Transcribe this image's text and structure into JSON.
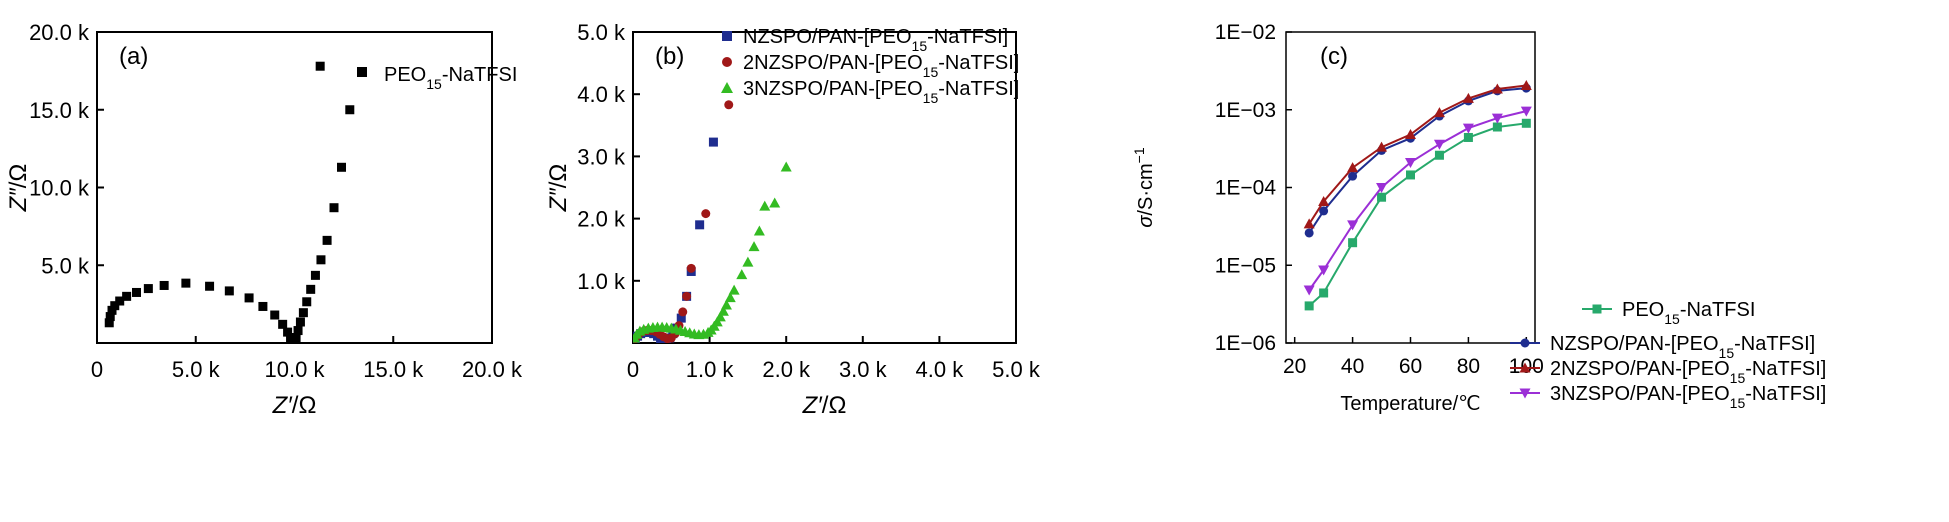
{
  "chart_data": [
    {
      "panel": "(a)",
      "type": "scatter",
      "xlabel_main": "Z′",
      "xlabel_unit": "/Ω",
      "ylabel_main": "Z″",
      "ylabel_unit": "/Ω",
      "xlim": [
        0,
        20000
      ],
      "ylim": [
        0,
        20000
      ],
      "xticks": [
        {
          "v": 0,
          "label": "0"
        },
        {
          "v": 5000,
          "label": "5.0 k"
        },
        {
          "v": 10000,
          "label": "10.0 k"
        },
        {
          "v": 15000,
          "label": "15.0 k"
        },
        {
          "v": 20000,
          "label": "20.0 k"
        }
      ],
      "yticks": [
        {
          "v": 5000,
          "label": "5.0 k"
        },
        {
          "v": 10000,
          "label": "10.0 k"
        },
        {
          "v": 15000,
          "label": "15.0 k"
        },
        {
          "v": 20000,
          "label": "20.0 k"
        }
      ],
      "legend_position": "top-right",
      "series": [
        {
          "name_base": "PEO",
          "name_sub": "15",
          "name_rest": "-NaTFSI",
          "color": "#000000",
          "marker": "square",
          "points": [
            [
              620,
              1300
            ],
            [
              670,
              1700
            ],
            [
              760,
              2100
            ],
            [
              900,
              2400
            ],
            [
              1150,
              2700
            ],
            [
              1500,
              3000
            ],
            [
              2000,
              3250
            ],
            [
              2600,
              3500
            ],
            [
              3400,
              3700
            ],
            [
              4500,
              3850
            ],
            [
              5700,
              3650
            ],
            [
              6700,
              3350
            ],
            [
              7700,
              2900
            ],
            [
              8400,
              2350
            ],
            [
              9000,
              1800
            ],
            [
              9400,
              1200
            ],
            [
              9650,
              700
            ],
            [
              9800,
              350
            ],
            [
              9900,
              150
            ],
            [
              10000,
              100
            ],
            [
              10080,
              350
            ],
            [
              10180,
              800
            ],
            [
              10300,
              1350
            ],
            [
              10450,
              1950
            ],
            [
              10620,
              2650
            ],
            [
              10820,
              3450
            ],
            [
              11060,
              4350
            ],
            [
              11340,
              5350
            ],
            [
              11650,
              6600
            ],
            [
              12000,
              8700
            ],
            [
              12380,
              11300
            ],
            [
              12800,
              15000
            ],
            [
              11300,
              17800
            ]
          ]
        }
      ]
    },
    {
      "panel": "(b)",
      "type": "scatter",
      "xlabel_main": "Z′",
      "xlabel_unit": "/Ω",
      "ylabel_main": "Z″",
      "ylabel_unit": "/Ω",
      "xlim": [
        0,
        5000
      ],
      "ylim": [
        0,
        5000
      ],
      "xticks": [
        {
          "v": 0,
          "label": "0"
        },
        {
          "v": 1000,
          "label": "1.0 k"
        },
        {
          "v": 2000,
          "label": "2.0 k"
        },
        {
          "v": 3000,
          "label": "3.0 k"
        },
        {
          "v": 4000,
          "label": "4.0 k"
        },
        {
          "v": 5000,
          "label": "5.0 k"
        }
      ],
      "yticks": [
        {
          "v": 1000,
          "label": "1.0 k"
        },
        {
          "v": 2000,
          "label": "2.0 k"
        },
        {
          "v": 3000,
          "label": "3.0 k"
        },
        {
          "v": 4000,
          "label": "4.0 k"
        },
        {
          "v": 5000,
          "label": "5.0 k"
        }
      ],
      "legend_position": "top",
      "series": [
        {
          "name_base": "NZSPO/PAN-[PEO",
          "name_sub": "15",
          "name_rest": "-NaTFSI]",
          "color": "#1f2d8f",
          "marker": "square",
          "points": [
            [
              30,
              60
            ],
            [
              60,
              110
            ],
            [
              100,
              150
            ],
            [
              150,
              170
            ],
            [
              210,
              170
            ],
            [
              270,
              150
            ],
            [
              320,
              110
            ],
            [
              360,
              70
            ],
            [
              400,
              40
            ],
            [
              440,
              40
            ],
            [
              480,
              80
            ],
            [
              520,
              150
            ],
            [
              570,
              240
            ],
            [
              630,
              400
            ],
            [
              700,
              750
            ],
            [
              760,
              1150
            ],
            [
              870,
              1900
            ],
            [
              1050,
              3230
            ]
          ]
        },
        {
          "name_base": "2NZSPO/PAN-[PEO",
          "name_sub": "15",
          "name_rest": "-NaTFSI]",
          "color": "#a01818",
          "marker": "circle",
          "points": [
            [
              30,
              70
            ],
            [
              70,
              130
            ],
            [
              120,
              180
            ],
            [
              180,
              200
            ],
            [
              240,
              200
            ],
            [
              300,
              180
            ],
            [
              350,
              140
            ],
            [
              400,
              100
            ],
            [
              450,
              70
            ],
            [
              500,
              80
            ],
            [
              550,
              150
            ],
            [
              600,
              280
            ],
            [
              650,
              500
            ],
            [
              700,
              750
            ],
            [
              760,
              1200
            ],
            [
              950,
              2080
            ],
            [
              1250,
              3830
            ]
          ]
        },
        {
          "name_base": "3NZSPO/PAN-[PEO",
          "name_sub": "15",
          "name_rest": "-NaTFSI]",
          "color": "#33bb22",
          "marker": "triangle",
          "points": [
            [
              20,
              80
            ],
            [
              50,
              140
            ],
            [
              90,
              190
            ],
            [
              140,
              220
            ],
            [
              200,
              240
            ],
            [
              260,
              250
            ],
            [
              320,
              255
            ],
            [
              380,
              255
            ],
            [
              440,
              250
            ],
            [
              500,
              240
            ],
            [
              560,
              225
            ],
            [
              620,
              205
            ],
            [
              680,
              185
            ],
            [
              740,
              165
            ],
            [
              800,
              145
            ],
            [
              860,
              135
            ],
            [
              920,
              140
            ],
            [
              980,
              170
            ],
            [
              1020,
              210
            ],
            [
              1060,
              270
            ],
            [
              1100,
              340
            ],
            [
              1140,
              420
            ],
            [
              1180,
              510
            ],
            [
              1220,
              610
            ],
            [
              1270,
              730
            ],
            [
              1320,
              850
            ],
            [
              1420,
              1100
            ],
            [
              1500,
              1300
            ],
            [
              1580,
              1550
            ],
            [
              1650,
              1800
            ],
            [
              1720,
              2200
            ],
            [
              1850,
              2250
            ],
            [
              2000,
              2830
            ]
          ]
        }
      ]
    },
    {
      "panel": "(c)",
      "type": "line",
      "xlabel": "Temperature/℃",
      "ylabel_main": "σ",
      "ylabel_unit": "/S·cm",
      "ylabel_sup": "−1",
      "yscale": "log",
      "xlim": [
        17,
        103
      ],
      "ylim": [
        1e-06,
        0.01
      ],
      "xticks": [
        {
          "v": 20,
          "label": "20"
        },
        {
          "v": 40,
          "label": "40"
        },
        {
          "v": 60,
          "label": "60"
        },
        {
          "v": 80,
          "label": "80"
        },
        {
          "v": 100,
          "label": "100"
        }
      ],
      "yticks": [
        {
          "v": 1e-06,
          "label": "1E−06"
        },
        {
          "v": 1e-05,
          "label": "1E−05"
        },
        {
          "v": 0.0001,
          "label": "1E−04"
        },
        {
          "v": 0.001,
          "label": "1E−03"
        },
        {
          "v": 0.01,
          "label": "1E−02"
        }
      ],
      "legend_position": "bottom-right",
      "x": [
        25,
        30,
        40,
        50,
        60,
        70,
        80,
        90,
        100
      ],
      "series": [
        {
          "name_base": "PEO",
          "name_sub": "15",
          "name_rest": "-NaTFSI",
          "color": "#27a96b",
          "marker": "square",
          "values": [
            3e-06,
            4.4e-06,
            1.95e-05,
            7.5e-05,
            0.000145,
            0.00026,
            0.00044,
            0.0006,
            0.00067
          ]
        },
        {
          "name_base": "NZSPO/PAN-[PEO",
          "name_sub": "15",
          "name_rest": "-NaTFSI]",
          "color": "#1f2d8f",
          "marker": "circle",
          "values": [
            2.6e-05,
            5e-05,
            0.00014,
            0.0003,
            0.00043,
            0.00083,
            0.0013,
            0.00175,
            0.0019
          ]
        },
        {
          "name_base": "2NZSPO/PAN-[PEO",
          "name_sub": "15",
          "name_rest": "-NaTFSI]",
          "color": "#a01818",
          "marker": "triangle",
          "values": [
            3.4e-05,
            6.6e-05,
            0.00018,
            0.00033,
            0.00048,
            0.00092,
            0.0014,
            0.00185,
            0.00205
          ]
        },
        {
          "name_base": "3NZSPO/PAN-[PEO",
          "name_sub": "15",
          "name_rest": "-NaTFSI]",
          "color": "#9b2fd6",
          "marker": "triangle-down",
          "values": [
            4.8e-06,
            8.7e-06,
            3.3e-05,
            0.0001,
            0.00021,
            0.00036,
            0.00058,
            0.00078,
            0.00096
          ]
        }
      ]
    }
  ]
}
